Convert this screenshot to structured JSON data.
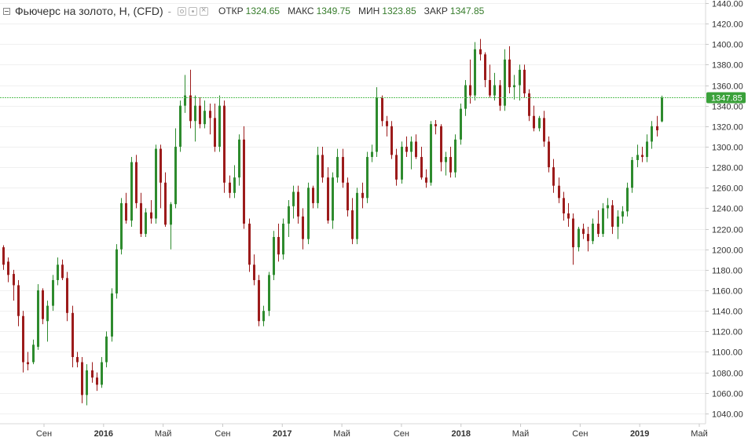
{
  "legend": {
    "title": "Фьючерс на золото, Н, (CFD)",
    "separator": "-",
    "open_label": "ОТКР",
    "open_value": "1324.65",
    "high_label": "МАКС",
    "high_value": "1349.75",
    "low_label": "МИН",
    "low_value": "1323.85",
    "close_label": "ЗАКР",
    "close_value": "1347.85"
  },
  "colors": {
    "up": "#2e8b2e",
    "down": "#9c1b1b",
    "grid": "#f0f0f0",
    "last_price_line": "#5cc05c",
    "last_price_badge": "#3aa13a",
    "axis_text": "#333333",
    "legend_value": "#367c2b"
  },
  "chart_data": {
    "type": "candlestick",
    "title": "Фьючерс на золото, Н, (CFD)",
    "interval": "weekly",
    "y_axis": {
      "range": [
        1030,
        1443
      ],
      "ticks": [
        1040,
        1060,
        1080,
        1100,
        1120,
        1140,
        1160,
        1180,
        1200,
        1220,
        1240,
        1260,
        1280,
        1300,
        1320,
        1340,
        1360,
        1380,
        1400,
        1420,
        1440
      ],
      "tick_labels": [
        "1040.00",
        "1060.00",
        "1080.00",
        "1100.00",
        "1120.00",
        "1140.00",
        "1160.00",
        "1180.00",
        "1200.00",
        "1220.00",
        "1240.00",
        "1260.00",
        "1280.00",
        "1300.00",
        "1320.00",
        "1340.00",
        "1360.00",
        "1380.00",
        "1400.00",
        "1420.00",
        "1440.00"
      ],
      "position": "right"
    },
    "x_axis": {
      "tick_labels": [
        "Сен",
        "2016",
        "Май",
        "Сен",
        "2017",
        "Май",
        "Сен",
        "2018",
        "Май",
        "Сен",
        "2019",
        "Май"
      ],
      "bold_labels": [
        "2016",
        "2017",
        "2018",
        "2019"
      ]
    },
    "last_price": 1347.85,
    "last_price_label": "1347.85",
    "grid": true,
    "candles": [
      [
        1202,
        1204,
        1180,
        1185
      ],
      [
        1188,
        1192,
        1168,
        1175
      ],
      [
        1176,
        1180,
        1150,
        1165
      ],
      [
        1165,
        1170,
        1125,
        1135
      ],
      [
        1135,
        1140,
        1080,
        1090
      ],
      [
        1090,
        1100,
        1082,
        1088
      ],
      [
        1090,
        1112,
        1088,
        1107
      ],
      [
        1105,
        1166,
        1102,
        1160
      ],
      [
        1160,
        1162,
        1127,
        1132
      ],
      [
        1130,
        1150,
        1110,
        1145
      ],
      [
        1145,
        1175,
        1140,
        1170
      ],
      [
        1170,
        1192,
        1165,
        1185
      ],
      [
        1185,
        1190,
        1170,
        1172
      ],
      [
        1172,
        1178,
        1130,
        1138
      ],
      [
        1138,
        1145,
        1085,
        1095
      ],
      [
        1095,
        1100,
        1085,
        1090
      ],
      [
        1090,
        1095,
        1050,
        1058
      ],
      [
        1058,
        1088,
        1048,
        1082
      ],
      [
        1082,
        1090,
        1070,
        1075
      ],
      [
        1075,
        1080,
        1062,
        1068
      ],
      [
        1068,
        1095,
        1065,
        1090
      ],
      [
        1090,
        1120,
        1085,
        1115
      ],
      [
        1115,
        1162,
        1110,
        1157
      ],
      [
        1157,
        1205,
        1152,
        1200
      ],
      [
        1200,
        1250,
        1195,
        1245
      ],
      [
        1245,
        1255,
        1225,
        1228
      ],
      [
        1228,
        1290,
        1222,
        1285
      ],
      [
        1285,
        1292,
        1240,
        1245
      ],
      [
        1245,
        1255,
        1212,
        1215
      ],
      [
        1215,
        1240,
        1212,
        1236
      ],
      [
        1236,
        1248,
        1225,
        1230
      ],
      [
        1230,
        1302,
        1225,
        1298
      ],
      [
        1298,
        1302,
        1240,
        1265
      ],
      [
        1265,
        1275,
        1222,
        1224
      ],
      [
        1224,
        1246,
        1200,
        1244
      ],
      [
        1244,
        1318,
        1240,
        1300
      ],
      [
        1300,
        1345,
        1295,
        1340
      ],
      [
        1340,
        1370,
        1333,
        1350
      ],
      [
        1350,
        1375,
        1318,
        1325
      ],
      [
        1325,
        1350,
        1305,
        1340
      ],
      [
        1340,
        1348,
        1318,
        1322
      ],
      [
        1322,
        1345,
        1318,
        1335
      ],
      [
        1335,
        1342,
        1312,
        1328
      ],
      [
        1328,
        1342,
        1295,
        1300
      ],
      [
        1300,
        1350,
        1295,
        1340
      ],
      [
        1340,
        1345,
        1255,
        1265
      ],
      [
        1265,
        1272,
        1250,
        1255
      ],
      [
        1255,
        1282,
        1250,
        1270
      ],
      [
        1270,
        1312,
        1262,
        1307
      ],
      [
        1307,
        1320,
        1220,
        1225
      ],
      [
        1225,
        1230,
        1178,
        1185
      ],
      [
        1185,
        1195,
        1165,
        1170
      ],
      [
        1170,
        1175,
        1125,
        1130
      ],
      [
        1130,
        1145,
        1125,
        1140
      ],
      [
        1140,
        1178,
        1135,
        1175
      ],
      [
        1175,
        1218,
        1170,
        1212
      ],
      [
        1212,
        1225,
        1188,
        1195
      ],
      [
        1195,
        1230,
        1190,
        1225
      ],
      [
        1225,
        1248,
        1212,
        1242
      ],
      [
        1242,
        1262,
        1230,
        1256
      ],
      [
        1256,
        1262,
        1225,
        1232
      ],
      [
        1232,
        1240,
        1200,
        1210
      ],
      [
        1210,
        1265,
        1205,
        1260
      ],
      [
        1260,
        1262,
        1240,
        1245
      ],
      [
        1245,
        1300,
        1240,
        1292
      ],
      [
        1292,
        1300,
        1265,
        1270
      ],
      [
        1270,
        1280,
        1225,
        1228
      ],
      [
        1228,
        1275,
        1220,
        1270
      ],
      [
        1270,
        1298,
        1265,
        1290
      ],
      [
        1290,
        1298,
        1260,
        1265
      ],
      [
        1265,
        1270,
        1232,
        1238
      ],
      [
        1238,
        1250,
        1205,
        1210
      ],
      [
        1210,
        1260,
        1205,
        1255
      ],
      [
        1255,
        1265,
        1240,
        1250
      ],
      [
        1250,
        1295,
        1245,
        1290
      ],
      [
        1290,
        1302,
        1285,
        1295
      ],
      [
        1295,
        1358,
        1290,
        1348
      ],
      [
        1348,
        1350,
        1320,
        1325
      ],
      [
        1325,
        1330,
        1310,
        1320
      ],
      [
        1320,
        1325,
        1288,
        1292
      ],
      [
        1292,
        1298,
        1262,
        1268
      ],
      [
        1268,
        1305,
        1264,
        1300
      ],
      [
        1300,
        1310,
        1290,
        1295
      ],
      [
        1295,
        1310,
        1278,
        1305
      ],
      [
        1305,
        1312,
        1288,
        1290
      ],
      [
        1290,
        1300,
        1268,
        1270
      ],
      [
        1270,
        1278,
        1260,
        1265
      ],
      [
        1265,
        1325,
        1262,
        1322
      ],
      [
        1322,
        1326,
        1312,
        1320
      ],
      [
        1320,
        1322,
        1276,
        1285
      ],
      [
        1285,
        1295,
        1272,
        1290
      ],
      [
        1290,
        1300,
        1270,
        1275
      ],
      [
        1275,
        1312,
        1270,
        1307
      ],
      [
        1307,
        1342,
        1302,
        1337
      ],
      [
        1337,
        1365,
        1330,
        1360
      ],
      [
        1360,
        1385,
        1342,
        1350
      ],
      [
        1350,
        1402,
        1345,
        1395
      ],
      [
        1395,
        1405,
        1384,
        1390
      ],
      [
        1390,
        1392,
        1358,
        1365
      ],
      [
        1365,
        1380,
        1348,
        1350
      ],
      [
        1350,
        1372,
        1345,
        1360
      ],
      [
        1360,
        1365,
        1335,
        1340
      ],
      [
        1340,
        1395,
        1335,
        1385
      ],
      [
        1385,
        1398,
        1352,
        1358
      ],
      [
        1358,
        1370,
        1346,
        1360
      ],
      [
        1360,
        1380,
        1345,
        1375
      ],
      [
        1375,
        1380,
        1348,
        1352
      ],
      [
        1352,
        1356,
        1325,
        1330
      ],
      [
        1330,
        1340,
        1315,
        1318
      ],
      [
        1318,
        1330,
        1315,
        1328
      ],
      [
        1328,
        1335,
        1300,
        1305
      ],
      [
        1305,
        1310,
        1275,
        1280
      ],
      [
        1280,
        1288,
        1255,
        1262
      ],
      [
        1262,
        1270,
        1245,
        1250
      ],
      [
        1250,
        1256,
        1228,
        1235
      ],
      [
        1235,
        1245,
        1222,
        1230
      ],
      [
        1230,
        1235,
        1185,
        1202
      ],
      [
        1202,
        1222,
        1198,
        1220
      ],
      [
        1220,
        1225,
        1210,
        1215
      ],
      [
        1215,
        1222,
        1198,
        1208
      ],
      [
        1208,
        1230,
        1205,
        1225
      ],
      [
        1225,
        1238,
        1212,
        1215
      ],
      [
        1215,
        1245,
        1212,
        1240
      ],
      [
        1240,
        1250,
        1230,
        1243
      ],
      [
        1243,
        1248,
        1215,
        1222
      ],
      [
        1222,
        1238,
        1210,
        1232
      ],
      [
        1232,
        1242,
        1225,
        1237
      ],
      [
        1237,
        1265,
        1232,
        1260
      ],
      [
        1260,
        1290,
        1255,
        1287
      ],
      [
        1287,
        1302,
        1280,
        1292
      ],
      [
        1292,
        1300,
        1285,
        1290
      ],
      [
        1290,
        1312,
        1285,
        1305
      ],
      [
        1305,
        1325,
        1298,
        1320
      ],
      [
        1320,
        1330,
        1310,
        1316
      ],
      [
        1324.65,
        1349.75,
        1323.85,
        1347.85
      ]
    ]
  }
}
